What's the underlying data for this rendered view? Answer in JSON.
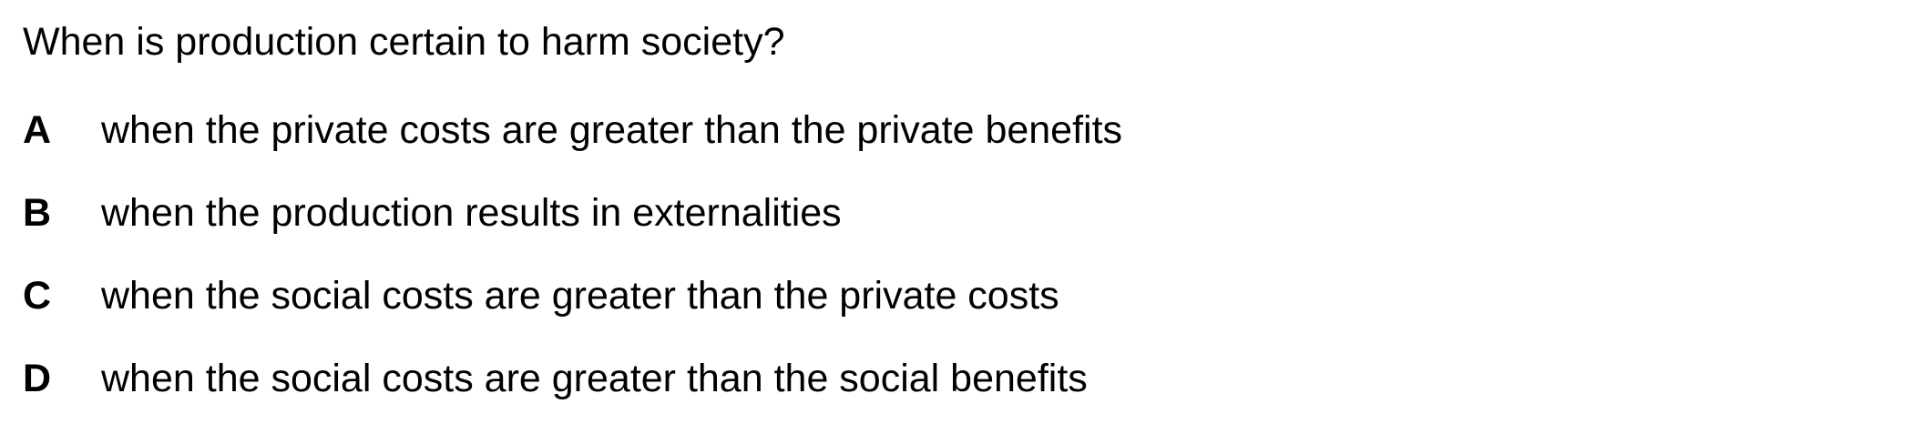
{
  "question": {
    "text": "When is production certain to harm society?"
  },
  "options": [
    {
      "letter": "A",
      "text": "when the private costs are greater than the private benefits"
    },
    {
      "letter": "B",
      "text": "when the production results in externalities"
    },
    {
      "letter": "C",
      "text": "when the social costs are greater than the private costs"
    },
    {
      "letter": "D",
      "text": "when the social costs are greater than the social benefits"
    }
  ]
}
